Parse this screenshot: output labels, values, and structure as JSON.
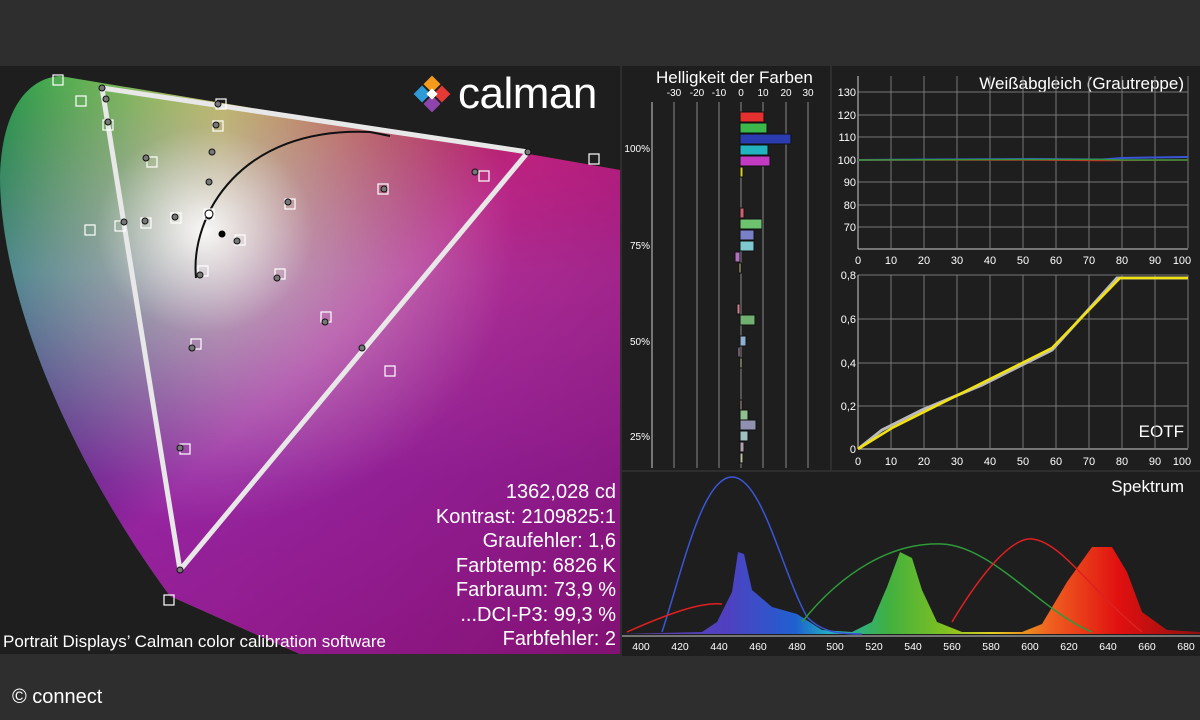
{
  "copyright": "© connect",
  "cie": {
    "logo_text": "calman",
    "caption": "Portrait Displays’ Calman color calibration software",
    "stats": {
      "luminance": "1362,028 cd",
      "contrast": "Kontrast: 2109825:1",
      "gray_error": "Graufehler: 1,6",
      "color_temp": "Farbtemp: 6826 K",
      "gamut": "Farbraum: 73,9 %",
      "dci": "...DCI-P3: 99,3 %",
      "color_error": "Farbfehler: 2"
    }
  },
  "brightness": {
    "title": "Helligkeit der Farben",
    "x_ticks": [
      "-30",
      "-20",
      "-10",
      "0",
      "10",
      "20",
      "30"
    ],
    "y_ticks": [
      "100%",
      "75%",
      "50%",
      "25%"
    ]
  },
  "whitebalance": {
    "title": "Weißabgleich (Grautreppe)",
    "y_ticks": [
      "130",
      "120",
      "110",
      "100",
      "90",
      "80",
      "70"
    ],
    "x_ticks": [
      "0",
      "10",
      "20",
      "30",
      "40",
      "50",
      "60",
      "70",
      "80",
      "90",
      "100"
    ]
  },
  "eotf": {
    "title": "EOTF",
    "y_ticks": [
      "0,8",
      "0,6",
      "0,4",
      "0,2",
      "0"
    ],
    "x_ticks": [
      "0",
      "10",
      "20",
      "30",
      "40",
      "50",
      "60",
      "70",
      "80",
      "90",
      "100"
    ]
  },
  "spectrum": {
    "title": "Spektrum",
    "x_ticks": [
      "400",
      "420",
      "440",
      "460",
      "480",
      "500",
      "520",
      "540",
      "560",
      "580",
      "600",
      "620",
      "640",
      "660",
      "680"
    ]
  },
  "colors": {
    "background": "#2e2e2e",
    "panel": "#1e1e1e",
    "eotf_line": "#f2e20f",
    "spectrum_blue": "#3a56d6",
    "spectrum_green": "#2e9a3a",
    "spectrum_red": "#e02020"
  }
}
